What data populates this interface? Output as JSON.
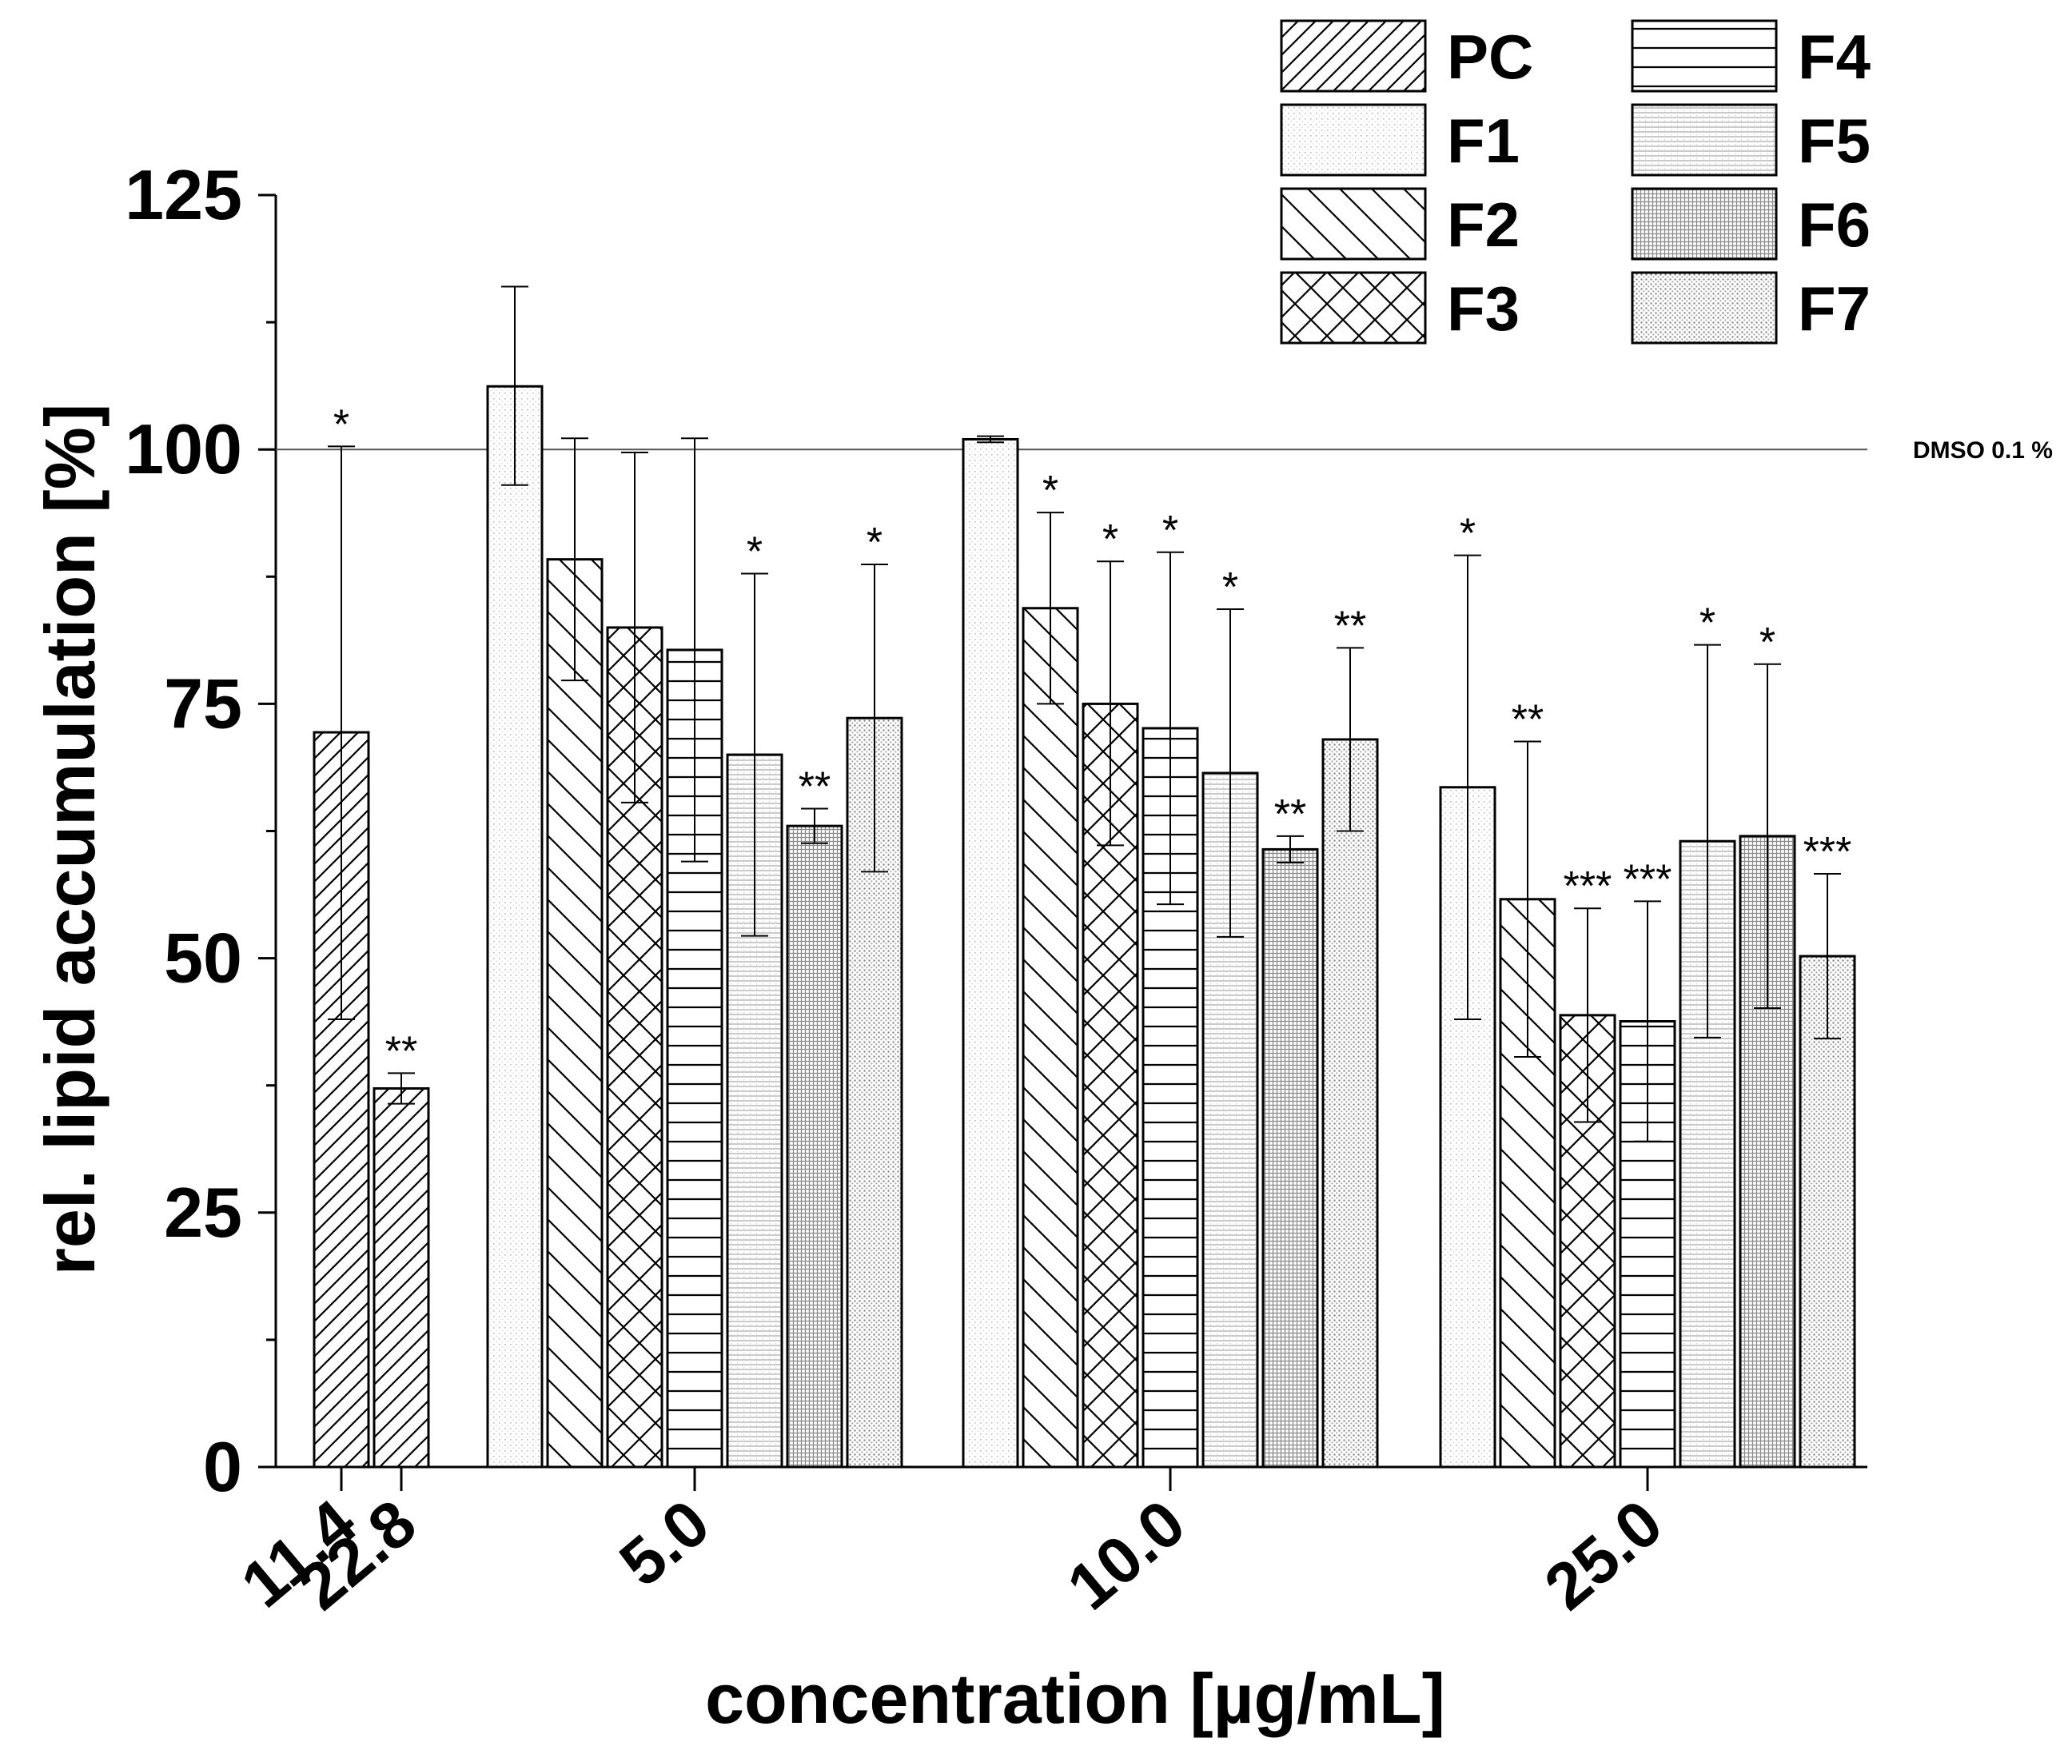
{
  "chart_data": {
    "type": "bar",
    "xlabel": "concentration [µg/mL]",
    "ylabel": "rel. lipid accumulation [%]",
    "ylim": [
      0,
      125
    ],
    "yticks": [
      0,
      25,
      50,
      75,
      100,
      125
    ],
    "grid": false,
    "legend_position": "top-right",
    "reference_line": {
      "value": 100,
      "label": "DMSO 0.1 %"
    },
    "series": [
      {
        "name": "PC",
        "pattern": "diag-up-dense"
      },
      {
        "name": "F1",
        "pattern": "dots-light"
      },
      {
        "name": "F2",
        "pattern": "diag-down"
      },
      {
        "name": "F3",
        "pattern": "crosshatch"
      },
      {
        "name": "F4",
        "pattern": "horizontal"
      },
      {
        "name": "F5",
        "pattern": "fine-horizontal"
      },
      {
        "name": "F6",
        "pattern": "fine-grid"
      },
      {
        "name": "F7",
        "pattern": "dots-dark"
      }
    ],
    "groups": [
      {
        "bars": [
          {
            "series": "PC",
            "tick": "11.4",
            "value": 72.2,
            "err_low": 44.0,
            "err_high": 100.3,
            "sig": "*"
          },
          {
            "series": "PC",
            "tick": "22.8",
            "value": 37.2,
            "err_low": 35.7,
            "err_high": 38.7,
            "sig": "**"
          }
        ]
      },
      {
        "tick": "5.0",
        "bars": [
          {
            "series": "F1",
            "value": 106.2,
            "err_low": 96.5,
            "err_high": 116.0,
            "sig": ""
          },
          {
            "series": "F2",
            "value": 89.2,
            "err_low": 77.3,
            "err_high": 101.1,
            "sig": ""
          },
          {
            "series": "F3",
            "value": 82.5,
            "err_low": 65.3,
            "err_high": 99.7,
            "sig": ""
          },
          {
            "series": "F4",
            "value": 80.3,
            "err_low": 59.5,
            "err_high": 101.1,
            "sig": ""
          },
          {
            "series": "F5",
            "value": 70.0,
            "err_low": 52.2,
            "err_high": 87.8,
            "sig": "*"
          },
          {
            "series": "F6",
            "value": 63.0,
            "err_low": 61.3,
            "err_high": 64.7,
            "sig": "**"
          },
          {
            "series": "F7",
            "value": 73.6,
            "err_low": 58.5,
            "err_high": 88.7,
            "sig": "*"
          }
        ]
      },
      {
        "tick": "10.0",
        "bars": [
          {
            "series": "F1",
            "value": 101.0,
            "err_low": 100.7,
            "err_high": 101.3,
            "sig": ""
          },
          {
            "series": "F2",
            "value": 84.4,
            "err_low": 75.0,
            "err_high": 93.8,
            "sig": "*"
          },
          {
            "series": "F3",
            "value": 75.0,
            "err_low": 61.1,
            "err_high": 89.0,
            "sig": "*"
          },
          {
            "series": "F4",
            "value": 72.6,
            "err_low": 55.3,
            "err_high": 89.9,
            "sig": "*"
          },
          {
            "series": "F5",
            "value": 68.2,
            "err_low": 52.1,
            "err_high": 84.3,
            "sig": "*"
          },
          {
            "series": "F6",
            "value": 60.7,
            "err_low": 59.4,
            "err_high": 62.0,
            "sig": "**"
          },
          {
            "series": "F7",
            "value": 71.5,
            "err_low": 62.5,
            "err_high": 80.5,
            "sig": "**"
          }
        ]
      },
      {
        "tick": "25.0",
        "bars": [
          {
            "series": "F1",
            "value": 66.8,
            "err_low": 44.0,
            "err_high": 89.6,
            "sig": "*"
          },
          {
            "series": "F2",
            "value": 55.8,
            "err_low": 40.3,
            "err_high": 71.3,
            "sig": "**"
          },
          {
            "series": "F3",
            "value": 44.4,
            "err_low": 33.9,
            "err_high": 54.9,
            "sig": "***"
          },
          {
            "series": "F4",
            "value": 43.8,
            "err_low": 32.0,
            "err_high": 55.6,
            "sig": "***"
          },
          {
            "series": "F5",
            "value": 61.5,
            "err_low": 42.2,
            "err_high": 80.8,
            "sig": "*"
          },
          {
            "series": "F6",
            "value": 62.0,
            "err_low": 45.1,
            "err_high": 78.9,
            "sig": "*"
          },
          {
            "series": "F7",
            "value": 50.2,
            "err_low": 42.1,
            "err_high": 58.3,
            "sig": "***"
          }
        ]
      }
    ]
  }
}
